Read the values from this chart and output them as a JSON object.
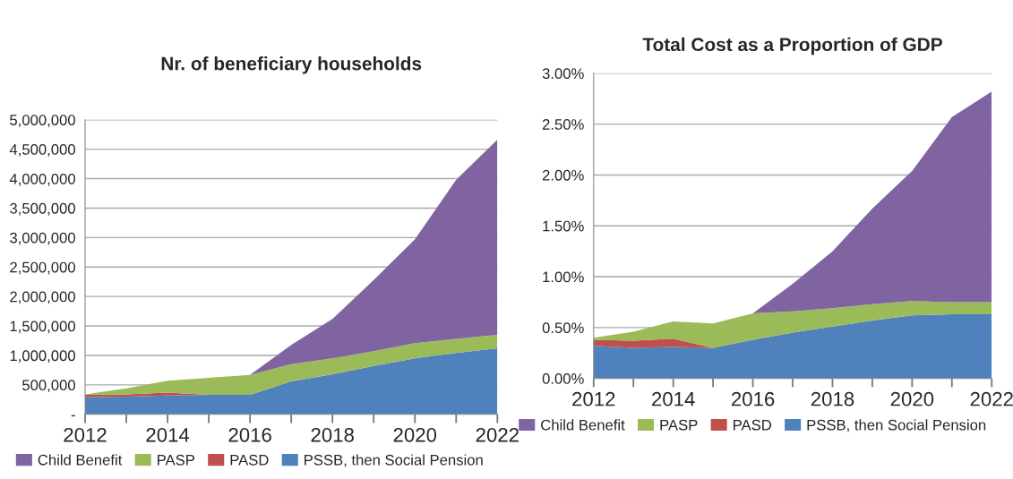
{
  "chart_data": [
    {
      "type": "area",
      "title": "Nr. of beneficiary households",
      "stacked": true,
      "x": [
        2012,
        2013,
        2014,
        2015,
        2016,
        2017,
        2018,
        2019,
        2020,
        2021,
        2022
      ],
      "series": [
        {
          "name": "PSSB, then Social Pension",
          "color": "#4f81bd",
          "values": [
            290000,
            300000,
            320000,
            330000,
            330000,
            560000,
            680000,
            820000,
            950000,
            1040000,
            1120000
          ]
        },
        {
          "name": "PASD",
          "color": "#c0504d",
          "values": [
            40000,
            40000,
            50000,
            0,
            0,
            0,
            0,
            0,
            0,
            0,
            0
          ]
        },
        {
          "name": "PASP",
          "color": "#9bbb59",
          "values": [
            10000,
            100000,
            200000,
            290000,
            340000,
            290000,
            270000,
            250000,
            260000,
            240000,
            230000
          ]
        },
        {
          "name": "Child Benefit",
          "color": "#8064a2",
          "values": [
            0,
            0,
            0,
            0,
            0,
            330000,
            670000,
            1210000,
            1760000,
            2700000,
            3310000
          ]
        }
      ],
      "xlim": [
        2012,
        2022
      ],
      "xticks": [
        2012,
        {
          "value": 2013,
          "label": null
        },
        2014,
        {
          "value": 2015,
          "label": null
        },
        2016,
        {
          "value": 2017,
          "label": null
        },
        2018,
        {
          "value": 2019,
          "label": null
        },
        2020,
        {
          "value": 2021,
          "label": null
        },
        2022
      ],
      "ylim": [
        0,
        5000000
      ],
      "yticks": [
        {
          "value": 0,
          "label": "-"
        },
        {
          "value": 500000,
          "label": "500,000"
        },
        {
          "value": 1000000,
          "label": "1,000,000"
        },
        {
          "value": 1500000,
          "label": "1,500,000"
        },
        {
          "value": 2000000,
          "label": "2,000,000"
        },
        {
          "value": 2500000,
          "label": "2,500,000"
        },
        {
          "value": 3000000,
          "label": "3,000,000"
        },
        {
          "value": 3500000,
          "label": "3,500,000"
        },
        {
          "value": 4000000,
          "label": "4,000,000"
        },
        {
          "value": 4500000,
          "label": "4,500,000"
        },
        {
          "value": 5000000,
          "label": "5,000,000"
        }
      ],
      "grid": "y",
      "legend": "bottom"
    },
    {
      "type": "area",
      "title": "Total Cost as a Proportion of GDP",
      "stacked": true,
      "x": [
        2012,
        2013,
        2014,
        2015,
        2016,
        2017,
        2018,
        2019,
        2020,
        2021,
        2022
      ],
      "series": [
        {
          "name": "PSSB, then Social Pension",
          "color": "#4f81bd",
          "values": [
            0.32,
            0.3,
            0.31,
            0.3,
            0.38,
            0.45,
            0.51,
            0.57,
            0.62,
            0.63,
            0.63
          ]
        },
        {
          "name": "PASD",
          "color": "#c0504d",
          "values": [
            0.06,
            0.07,
            0.08,
            0,
            0,
            0,
            0,
            0,
            0,
            0,
            0
          ]
        },
        {
          "name": "PASP",
          "color": "#9bbb59",
          "values": [
            0.02,
            0.09,
            0.17,
            0.24,
            0.26,
            0.21,
            0.18,
            0.16,
            0.14,
            0.12,
            0.12
          ]
        },
        {
          "name": "Child Benefit",
          "color": "#8064a2",
          "values": [
            0,
            0,
            0,
            0,
            0,
            0.27,
            0.56,
            0.94,
            1.28,
            1.82,
            2.07
          ]
        }
      ],
      "xlim": [
        2012,
        2022
      ],
      "xticks": [
        2012,
        {
          "value": 2013,
          "label": null
        },
        2014,
        {
          "value": 2015,
          "label": null
        },
        2016,
        {
          "value": 2017,
          "label": null
        },
        2018,
        {
          "value": 2019,
          "label": null
        },
        2020,
        {
          "value": 2021,
          "label": null
        },
        2022
      ],
      "ylim": [
        0,
        3
      ],
      "yticks": [
        {
          "value": 0,
          "label": "0.00%"
        },
        {
          "value": 0.5,
          "label": "0.50%"
        },
        {
          "value": 1,
          "label": "1.00%"
        },
        {
          "value": 1.5,
          "label": "1.50%"
        },
        {
          "value": 2,
          "label": "2.00%"
        },
        {
          "value": 2.5,
          "label": "2.50%"
        },
        {
          "value": 3,
          "label": "3.00%"
        }
      ],
      "grid": "y",
      "legend": "bottom"
    }
  ]
}
